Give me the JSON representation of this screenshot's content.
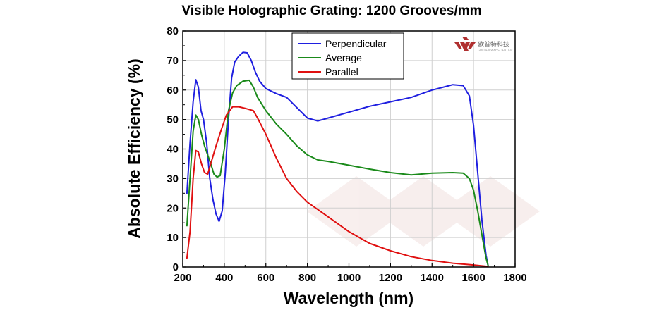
{
  "chart_data": {
    "type": "line",
    "title": "Visible Holographic Grating: 1200 Grooves/mm",
    "xlabel": "Wavelength (nm)",
    "ylabel": "Absolute Efficiency (%)",
    "xlim": [
      200,
      1800
    ],
    "ylim": [
      0,
      80
    ],
    "x_ticks": [
      200,
      400,
      600,
      800,
      1000,
      1200,
      1400,
      1600,
      1800
    ],
    "y_ticks": [
      0,
      10,
      20,
      30,
      40,
      50,
      60,
      70,
      80
    ],
    "grid": true,
    "legend_position": "top-center",
    "series": [
      {
        "name": "Perpendicular",
        "color": "#1f1fe0",
        "points": [
          [
            220,
            25
          ],
          [
            235,
            42
          ],
          [
            250,
            56
          ],
          [
            263,
            63.5
          ],
          [
            275,
            61
          ],
          [
            288,
            53
          ],
          [
            300,
            50
          ],
          [
            315,
            42
          ],
          [
            330,
            30
          ],
          [
            345,
            23
          ],
          [
            360,
            18
          ],
          [
            375,
            15.5
          ],
          [
            390,
            19
          ],
          [
            405,
            32
          ],
          [
            420,
            50
          ],
          [
            435,
            64
          ],
          [
            450,
            69.5
          ],
          [
            470,
            71.5
          ],
          [
            490,
            72.8
          ],
          [
            510,
            72.6
          ],
          [
            530,
            70
          ],
          [
            550,
            66
          ],
          [
            570,
            63
          ],
          [
            600,
            60.5
          ],
          [
            650,
            58.8
          ],
          [
            700,
            57.5
          ],
          [
            750,
            54
          ],
          [
            800,
            50.5
          ],
          [
            850,
            49.5
          ],
          [
            900,
            50.5
          ],
          [
            1000,
            52.5
          ],
          [
            1100,
            54.5
          ],
          [
            1200,
            56
          ],
          [
            1300,
            57.5
          ],
          [
            1400,
            60
          ],
          [
            1500,
            61.8
          ],
          [
            1550,
            61.5
          ],
          [
            1580,
            58
          ],
          [
            1600,
            48
          ],
          [
            1620,
            32
          ],
          [
            1640,
            16
          ],
          [
            1660,
            4
          ],
          [
            1670,
            0.5
          ]
        ]
      },
      {
        "name": "Average",
        "color": "#1a8a1a",
        "points": [
          [
            220,
            14
          ],
          [
            235,
            30
          ],
          [
            250,
            46
          ],
          [
            263,
            51.5
          ],
          [
            275,
            50
          ],
          [
            290,
            45
          ],
          [
            305,
            41
          ],
          [
            320,
            38
          ],
          [
            335,
            35
          ],
          [
            350,
            31.5
          ],
          [
            365,
            30.5
          ],
          [
            380,
            31
          ],
          [
            400,
            40
          ],
          [
            420,
            53
          ],
          [
            440,
            59
          ],
          [
            460,
            61.5
          ],
          [
            490,
            63
          ],
          [
            520,
            63.3
          ],
          [
            540,
            61
          ],
          [
            560,
            57.5
          ],
          [
            600,
            53
          ],
          [
            650,
            48.5
          ],
          [
            700,
            45
          ],
          [
            750,
            41
          ],
          [
            800,
            38
          ],
          [
            850,
            36.3
          ],
          [
            900,
            35.8
          ],
          [
            1000,
            34.5
          ],
          [
            1100,
            33.2
          ],
          [
            1200,
            32
          ],
          [
            1300,
            31.2
          ],
          [
            1400,
            31.8
          ],
          [
            1500,
            32
          ],
          [
            1550,
            31.8
          ],
          [
            1580,
            30
          ],
          [
            1600,
            26
          ],
          [
            1620,
            19
          ],
          [
            1640,
            11
          ],
          [
            1660,
            3
          ],
          [
            1670,
            0.5
          ]
        ]
      },
      {
        "name": "Parallel",
        "color": "#e01010",
        "points": [
          [
            220,
            3
          ],
          [
            235,
            12
          ],
          [
            250,
            30
          ],
          [
            263,
            39.5
          ],
          [
            275,
            39
          ],
          [
            290,
            35
          ],
          [
            305,
            32
          ],
          [
            320,
            31.5
          ],
          [
            335,
            35
          ],
          [
            360,
            41
          ],
          [
            385,
            46.5
          ],
          [
            410,
            51.5
          ],
          [
            440,
            54.3
          ],
          [
            470,
            54.3
          ],
          [
            500,
            53.8
          ],
          [
            540,
            53
          ],
          [
            560,
            50.5
          ],
          [
            600,
            45
          ],
          [
            650,
            37
          ],
          [
            700,
            30
          ],
          [
            750,
            25.5
          ],
          [
            800,
            22
          ],
          [
            900,
            17
          ],
          [
            1000,
            12
          ],
          [
            1100,
            8
          ],
          [
            1200,
            5.5
          ],
          [
            1300,
            3.5
          ],
          [
            1400,
            2.2
          ],
          [
            1500,
            1.3
          ],
          [
            1600,
            0.7
          ],
          [
            1670,
            0.2
          ]
        ]
      }
    ]
  },
  "logo": {
    "name": "欧普特科技",
    "subtitle": "GOLDEN WAY SCIENTIFIC",
    "icon": "gw-logo-icon"
  }
}
